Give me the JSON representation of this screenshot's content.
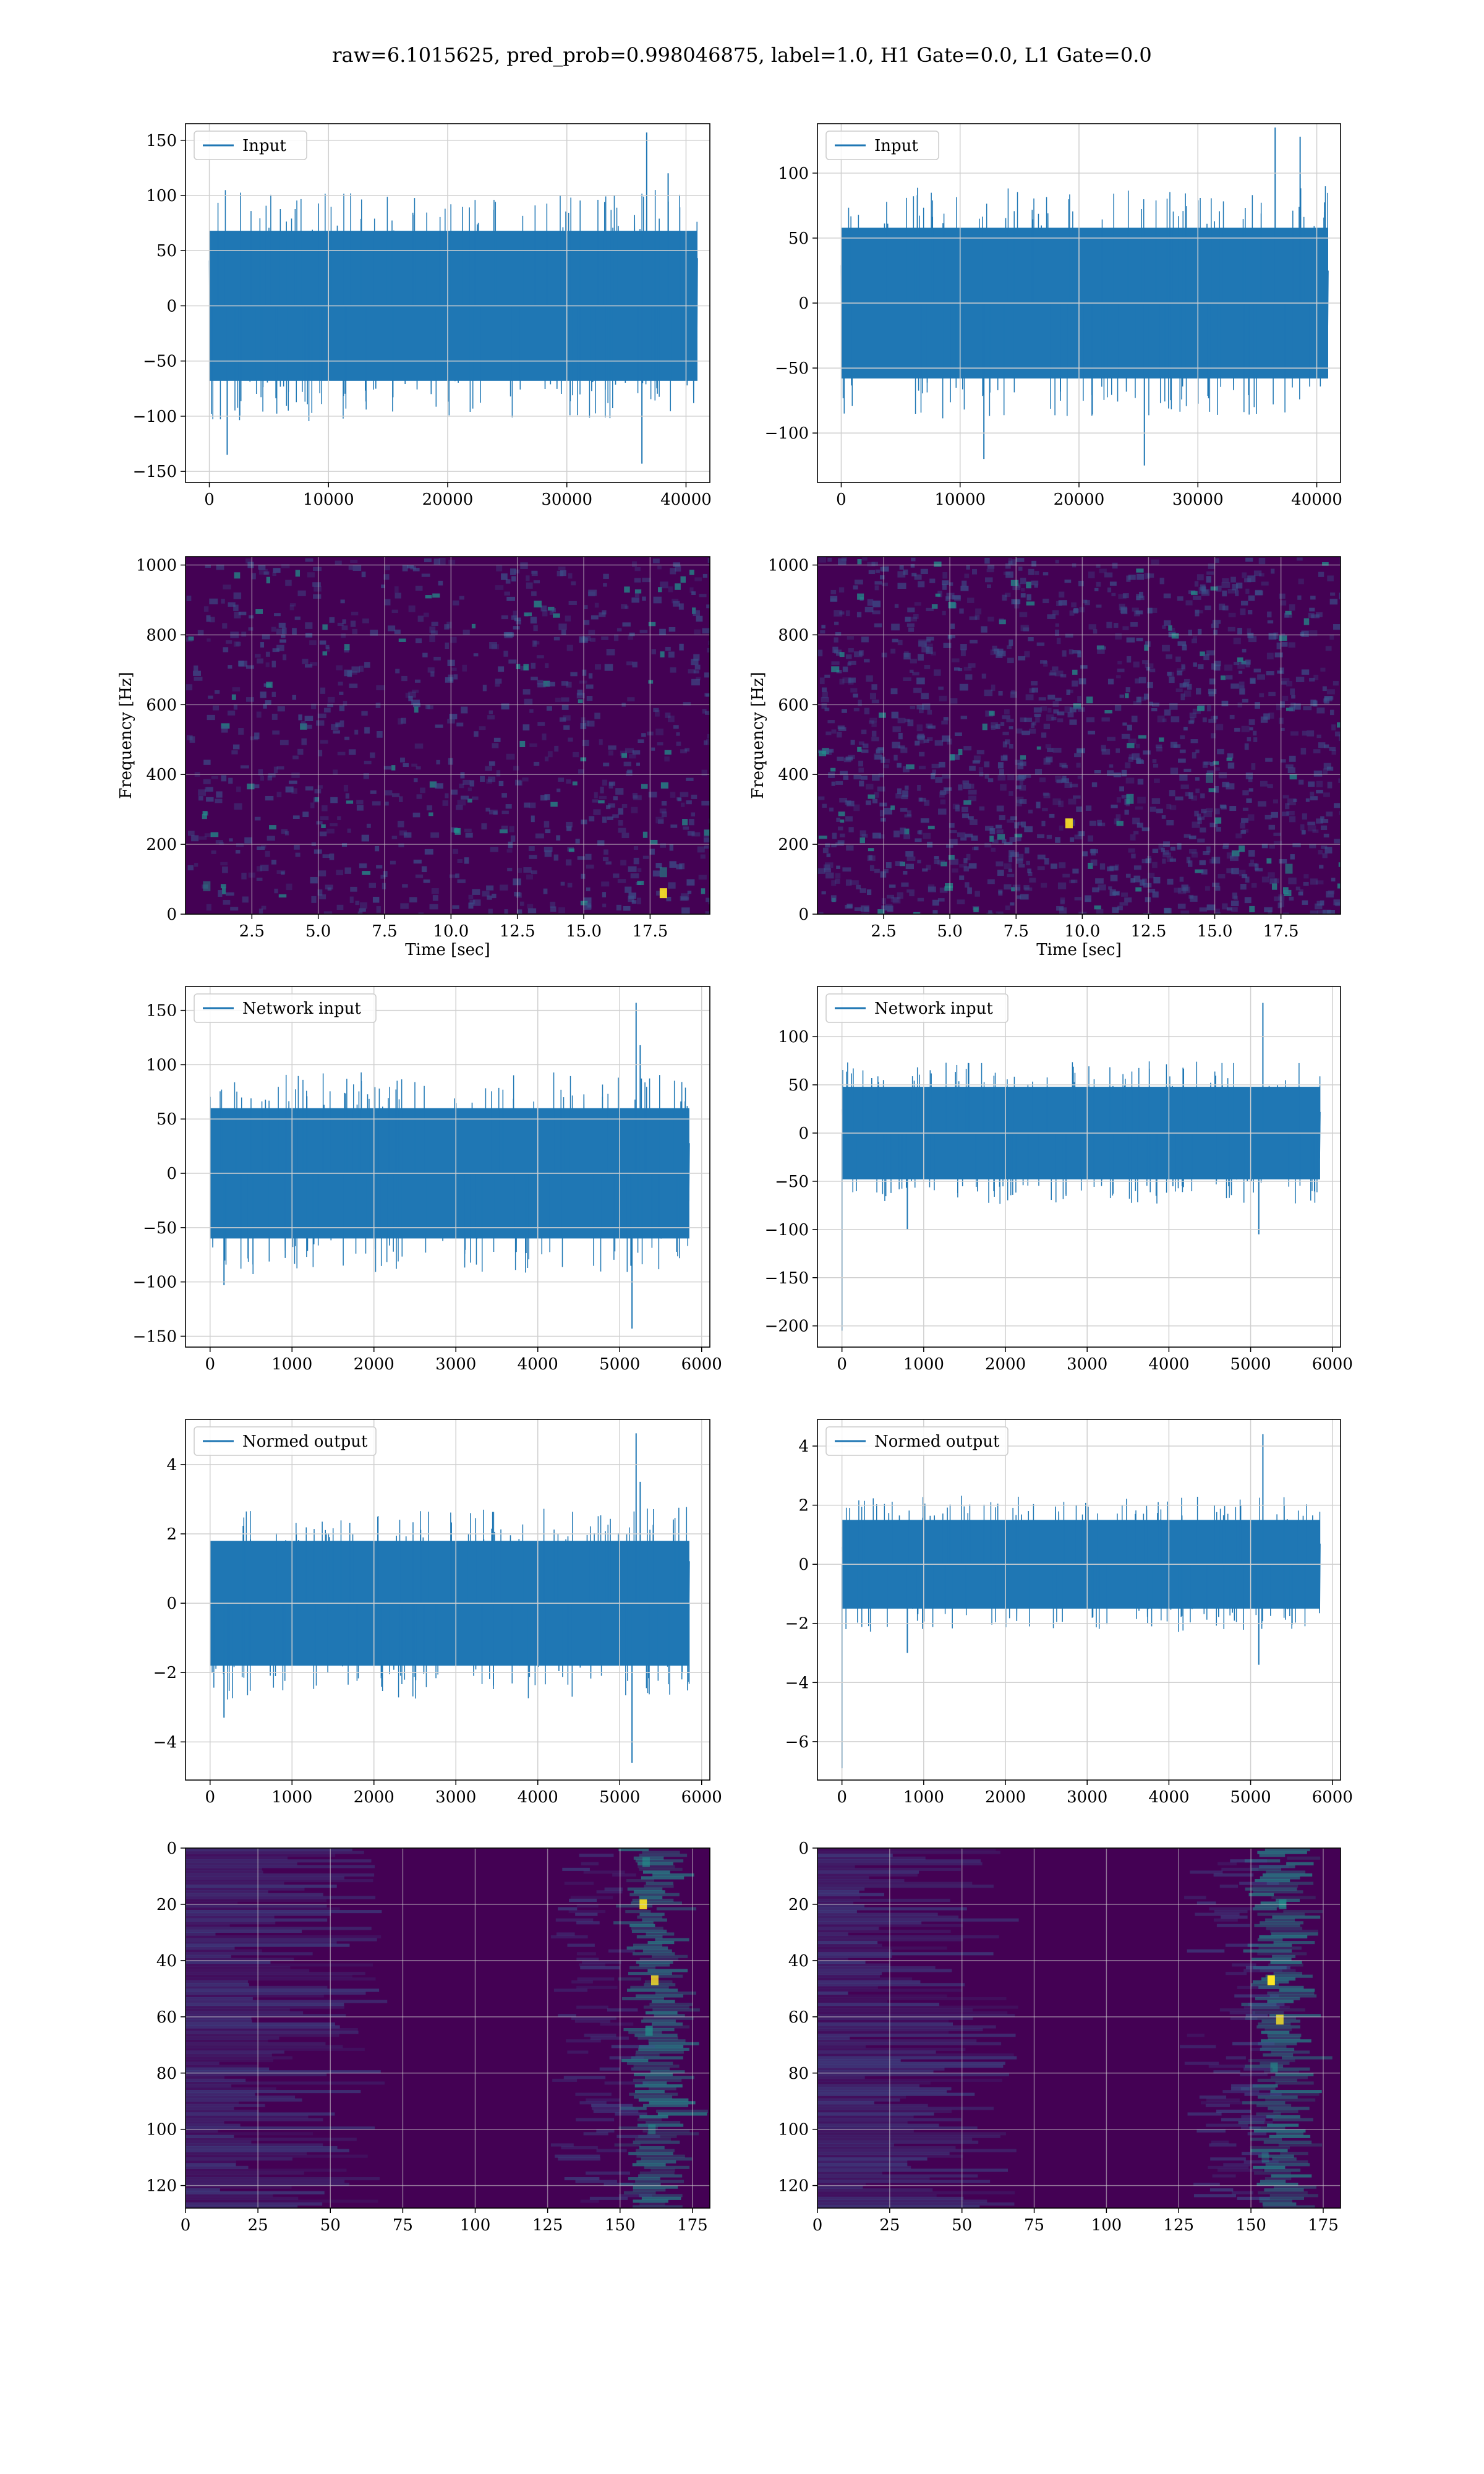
{
  "title": "raw=6.1015625, pred_prob=0.998046875, label=1.0, H1 Gate=0.0, L1 Gate=0.0",
  "colors": {
    "series": "#1f77b4",
    "grid": "#d0d0d0",
    "spectrogram_bg": "#440154",
    "spectrogram_mid": "#3b528b",
    "spectrogram_hi": "#21918c",
    "spectrogram_peak": "#fde725"
  },
  "chart_data": [
    {
      "id": "h1-input",
      "type": "line",
      "legend": "Input",
      "xlim": [
        -2000,
        42000
      ],
      "ylim": [
        -160,
        165
      ],
      "xticks": [
        0,
        10000,
        20000,
        30000,
        40000
      ],
      "xtick_labels": [
        "0",
        "10000",
        "20000",
        "30000",
        "40000"
      ],
      "yticks": [
        150,
        100,
        50,
        0,
        -50,
        -100,
        -150
      ],
      "ytick_labels": [
        "150",
        "100",
        "50",
        "0",
        "−50",
        "−100",
        "−150"
      ],
      "xlabel": "",
      "ylabel": "",
      "signal": {
        "x_start": 0,
        "x_end": 40960,
        "band": 68,
        "outlier_max": 157,
        "outlier_min": -143,
        "outliers": [
          [
            36700,
            157
          ],
          [
            36300,
            -143
          ],
          [
            1500,
            -135
          ],
          [
            38500,
            120
          ]
        ]
      },
      "grid": true,
      "legend_loc": "upper left"
    },
    {
      "id": "l1-input",
      "type": "line",
      "legend": "Input",
      "xlim": [
        -2000,
        42000
      ],
      "ylim": [
        -138,
        138
      ],
      "xticks": [
        0,
        10000,
        20000,
        30000,
        40000
      ],
      "xtick_labels": [
        "0",
        "10000",
        "20000",
        "30000",
        "40000"
      ],
      "yticks": [
        100,
        50,
        0,
        -50,
        -100
      ],
      "ytick_labels": [
        "100",
        "50",
        "0",
        "−50",
        "−100"
      ],
      "xlabel": "",
      "ylabel": "",
      "signal": {
        "x_start": 0,
        "x_end": 40960,
        "band": 58,
        "outlier_max": 135,
        "outlier_min": -125,
        "outliers": [
          [
            36500,
            135
          ],
          [
            25500,
            -125
          ],
          [
            12000,
            -120
          ],
          [
            38600,
            128
          ]
        ]
      },
      "grid": true,
      "legend_loc": "upper left"
    },
    {
      "id": "h1-spectrogram",
      "type": "heatmap",
      "xlim": [
        0,
        19.75
      ],
      "ylim": [
        0,
        1024
      ],
      "xticks": [
        2.5,
        5.0,
        7.5,
        10.0,
        12.5,
        15.0,
        17.5
      ],
      "xtick_labels": [
        "2.5",
        "5.0",
        "7.5",
        "10.0",
        "12.5",
        "15.0",
        "17.5"
      ],
      "yticks": [
        0,
        200,
        400,
        600,
        800,
        1000
      ],
      "ytick_labels": [
        "0",
        "200",
        "400",
        "600",
        "800",
        "1000"
      ],
      "xlabel": "Time [sec]",
      "ylabel": "Frequency [Hz]",
      "hotspots": [
        [
          18.0,
          60,
          0.9
        ],
        [
          18.0,
          120,
          0.6
        ],
        [
          0.8,
          80,
          0.5
        ]
      ],
      "grid": true
    },
    {
      "id": "l1-spectrogram",
      "type": "heatmap",
      "xlim": [
        0,
        19.75
      ],
      "ylim": [
        0,
        1024
      ],
      "xticks": [
        2.5,
        5.0,
        7.5,
        10.0,
        12.5,
        15.0,
        17.5
      ],
      "xtick_labels": [
        "2.5",
        "5.0",
        "7.5",
        "10.0",
        "12.5",
        "15.0",
        "17.5"
      ],
      "yticks": [
        0,
        200,
        400,
        600,
        800,
        1000
      ],
      "ytick_labels": [
        "0",
        "200",
        "400",
        "600",
        "800",
        "1000"
      ],
      "xlabel": "Time [sec]",
      "ylabel": "Frequency [Hz]",
      "hotspots": [
        [
          9.5,
          260,
          0.9
        ],
        [
          11.8,
          330,
          0.7
        ],
        [
          17.8,
          130,
          0.6
        ],
        [
          14.8,
          390,
          0.5
        ]
      ],
      "grid": true
    },
    {
      "id": "h1-network-input",
      "type": "line",
      "legend": "Network input",
      "xlim": [
        -300,
        6100
      ],
      "ylim": [
        -160,
        172
      ],
      "xticks": [
        0,
        1000,
        2000,
        3000,
        4000,
        5000,
        6000
      ],
      "xtick_labels": [
        "0",
        "1000",
        "2000",
        "3000",
        "4000",
        "5000",
        "6000"
      ],
      "yticks": [
        150,
        100,
        50,
        0,
        -50,
        -100,
        -150
      ],
      "ytick_labels": [
        "150",
        "100",
        "50",
        "0",
        "−50",
        "−100",
        "−150"
      ],
      "xlabel": "",
      "ylabel": "",
      "signal": {
        "x_start": 0,
        "x_end": 5850,
        "band": 60,
        "outlier_max": 157,
        "outlier_min": -143,
        "outliers": [
          [
            5200,
            157
          ],
          [
            5150,
            -143
          ],
          [
            5250,
            118
          ],
          [
            170,
            -103
          ]
        ]
      },
      "grid": true,
      "legend_loc": "upper left"
    },
    {
      "id": "l1-network-input",
      "type": "line",
      "legend": "Network input",
      "xlim": [
        -300,
        6100
      ],
      "ylim": [
        -222,
        152
      ],
      "xticks": [
        0,
        1000,
        2000,
        3000,
        4000,
        5000,
        6000
      ],
      "xtick_labels": [
        "0",
        "1000",
        "2000",
        "3000",
        "4000",
        "5000",
        "6000"
      ],
      "yticks": [
        100,
        50,
        0,
        -50,
        -100,
        -150,
        -200
      ],
      "ytick_labels": [
        "100",
        "50",
        "0",
        "−50",
        "−100",
        "−150",
        "−200"
      ],
      "xlabel": "",
      "ylabel": "",
      "signal": {
        "x_start": 0,
        "x_end": 5850,
        "band": 48,
        "outlier_max": 135,
        "outlier_min": -205,
        "outliers": [
          [
            0,
            -205
          ],
          [
            5150,
            135
          ],
          [
            5100,
            -105
          ],
          [
            800,
            -100
          ]
        ]
      },
      "grid": true,
      "legend_loc": "upper left"
    },
    {
      "id": "h1-normed-output",
      "type": "line",
      "legend": "Normed output",
      "xlim": [
        -300,
        6100
      ],
      "ylim": [
        -5.1,
        5.3
      ],
      "xticks": [
        0,
        1000,
        2000,
        3000,
        4000,
        5000,
        6000
      ],
      "xtick_labels": [
        "0",
        "1000",
        "2000",
        "3000",
        "4000",
        "5000",
        "6000"
      ],
      "yticks": [
        4,
        2,
        0,
        -2,
        -4
      ],
      "ytick_labels": [
        "4",
        "2",
        "0",
        "−2",
        "−4"
      ],
      "xlabel": "",
      "ylabel": "",
      "signal": {
        "x_start": 0,
        "x_end": 5850,
        "band": 1.8,
        "outlier_max": 4.9,
        "outlier_min": -4.6,
        "outliers": [
          [
            5200,
            4.9
          ],
          [
            5150,
            -4.6
          ],
          [
            5250,
            3.5
          ],
          [
            170,
            -3.3
          ]
        ]
      },
      "grid": true,
      "legend_loc": "upper left"
    },
    {
      "id": "l1-normed-output",
      "type": "line",
      "legend": "Normed output",
      "xlim": [
        -300,
        6100
      ],
      "ylim": [
        -7.3,
        4.9
      ],
      "xticks": [
        0,
        1000,
        2000,
        3000,
        4000,
        5000,
        6000
      ],
      "xtick_labels": [
        "0",
        "1000",
        "2000",
        "3000",
        "4000",
        "5000",
        "6000"
      ],
      "yticks": [
        4,
        2,
        0,
        -2,
        -4,
        -6
      ],
      "ytick_labels": [
        "4",
        "2",
        "0",
        "−2",
        "−4",
        "−6"
      ],
      "xlabel": "",
      "ylabel": "",
      "signal": {
        "x_start": 0,
        "x_end": 5850,
        "band": 1.5,
        "outlier_max": 4.4,
        "outlier_min": -6.9,
        "outliers": [
          [
            0,
            -6.9
          ],
          [
            5150,
            4.4
          ],
          [
            5100,
            -3.4
          ],
          [
            800,
            -3.0
          ]
        ]
      },
      "grid": true,
      "legend_loc": "upper left"
    },
    {
      "id": "h1-activation-map",
      "type": "heatmap",
      "xlim": [
        0,
        181
      ],
      "ylim": [
        128,
        0
      ],
      "xticks": [
        0,
        25,
        50,
        75,
        100,
        125,
        150,
        175
      ],
      "xtick_labels": [
        "0",
        "25",
        "50",
        "75",
        "100",
        "125",
        "150",
        "175"
      ],
      "yticks": [
        0,
        20,
        40,
        60,
        80,
        100,
        120
      ],
      "ytick_labels": [
        "0",
        "20",
        "40",
        "60",
        "80",
        "100",
        "120"
      ],
      "xlabel": "",
      "ylabel": "",
      "band_center": 160,
      "hotspots": [
        [
          158,
          20,
          0.9
        ],
        [
          162,
          47,
          0.8
        ],
        [
          160,
          65,
          0.7
        ],
        [
          161,
          100,
          0.5
        ],
        [
          159,
          5,
          0.6
        ]
      ],
      "grid": true
    },
    {
      "id": "l1-activation-map",
      "type": "heatmap",
      "xlim": [
        0,
        181
      ],
      "ylim": [
        128,
        0
      ],
      "xticks": [
        0,
        25,
        50,
        75,
        100,
        125,
        150,
        175
      ],
      "xtick_labels": [
        "0",
        "25",
        "50",
        "75",
        "100",
        "125",
        "150",
        "175"
      ],
      "yticks": [
        0,
        20,
        40,
        60,
        80,
        100,
        120
      ],
      "ytick_labels": [
        "0",
        "20",
        "40",
        "60",
        "80",
        "100",
        "120"
      ],
      "xlabel": "",
      "ylabel": "",
      "band_center": 158,
      "hotspots": [
        [
          157,
          47,
          1.0
        ],
        [
          160,
          61,
          0.8
        ],
        [
          161,
          20,
          0.7
        ],
        [
          158,
          78,
          0.6
        ],
        [
          155,
          110,
          0.4
        ]
      ],
      "grid": true
    }
  ]
}
